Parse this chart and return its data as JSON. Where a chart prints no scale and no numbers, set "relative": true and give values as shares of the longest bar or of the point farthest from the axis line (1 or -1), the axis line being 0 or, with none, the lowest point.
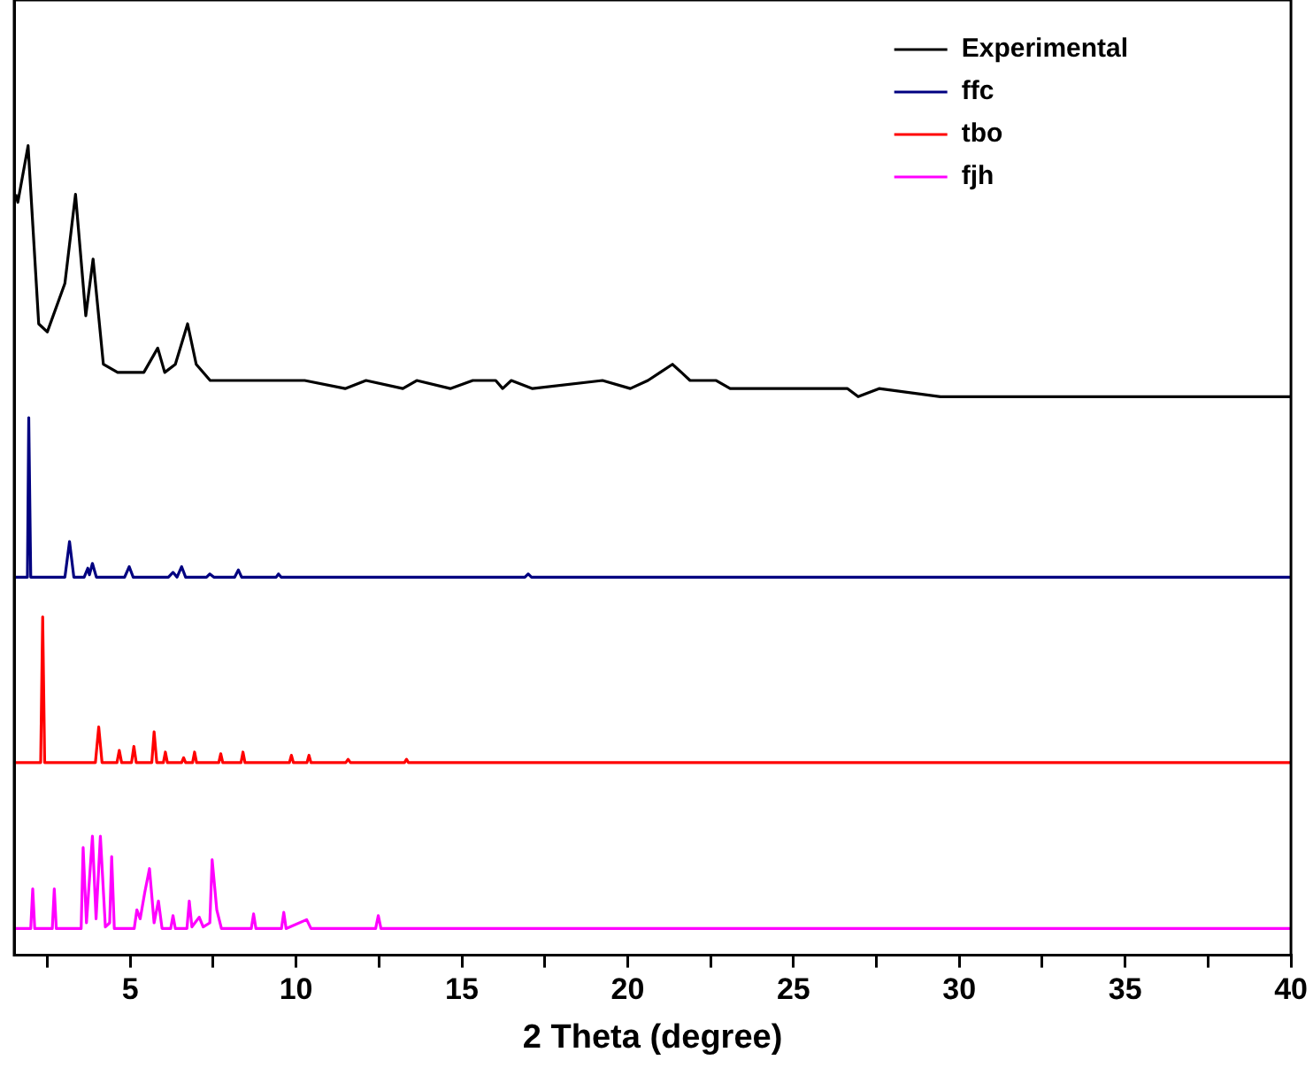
{
  "chart_data": {
    "type": "line",
    "relative": true,
    "xlabel": "2 Theta (degree)",
    "xlim": [
      1.5,
      40
    ],
    "xticks": [
      {
        "value": 2.5,
        "label": null
      },
      5,
      {
        "value": 7.5,
        "label": null
      },
      10,
      {
        "value": 12.5,
        "label": null
      },
      15,
      {
        "value": 17.5,
        "label": null
      },
      20,
      {
        "value": 22.5,
        "label": null
      },
      25,
      {
        "value": 27.5,
        "label": null
      },
      30,
      {
        "value": 32.5,
        "label": null
      },
      35,
      {
        "value": 37.5,
        "label": null
      },
      40
    ],
    "legend": "top right",
    "grid": false,
    "marker": "none",
    "line_style": "solid",
    "series": [
      {
        "name": "Experimental",
        "color": "#000000",
        "x": [
          1.55,
          1.61,
          1.92,
          2.24,
          2.5,
          3.03,
          3.35,
          3.66,
          3.88,
          4.19,
          4.62,
          5.09,
          5.41,
          5.83,
          6.04,
          6.36,
          6.73,
          6.99,
          7.41,
          8.68,
          9.0,
          10.26,
          11.48,
          12.11,
          13.22,
          13.64,
          14.65,
          15.33,
          16.02,
          16.23,
          16.49,
          17.13,
          19.24,
          20.08,
          20.61,
          20.98,
          21.35,
          21.62,
          21.88,
          22.67,
          23.09,
          23.89,
          24.31,
          25.89,
          26.63,
          26.95,
          27.58,
          29.43,
          32.97,
          36.45,
          40.0
        ],
        "values": [
          0.94,
          0.93,
          1.0,
          0.78,
          0.77,
          0.83,
          0.94,
          0.79,
          0.86,
          0.73,
          0.72,
          0.72,
          0.72,
          0.75,
          0.72,
          0.73,
          0.78,
          0.73,
          0.71,
          0.71,
          0.71,
          0.71,
          0.7,
          0.71,
          0.7,
          0.71,
          0.7,
          0.71,
          0.71,
          0.7,
          0.71,
          0.7,
          0.71,
          0.7,
          0.71,
          0.72,
          0.73,
          0.72,
          0.71,
          0.71,
          0.7,
          0.7,
          0.7,
          0.7,
          0.7,
          0.69,
          0.7,
          0.69,
          0.69,
          0.69,
          0.69
        ]
      },
      {
        "name": "ffc",
        "color": "#000080",
        "x": [
          1.55,
          1.9,
          1.94,
          2.0,
          3.03,
          3.17,
          3.3,
          3.61,
          3.72,
          3.77,
          3.86,
          3.98,
          4.83,
          4.97,
          5.09,
          6.15,
          6.29,
          6.41,
          6.55,
          6.67,
          7.3,
          7.4,
          7.52,
          8.15,
          8.26,
          8.36,
          9.4,
          9.47,
          9.55,
          16.9,
          17.0,
          17.1,
          40.0
        ],
        "values": [
          0.467,
          0.467,
          0.664,
          0.467,
          0.467,
          0.511,
          0.467,
          0.467,
          0.478,
          0.47,
          0.484,
          0.467,
          0.467,
          0.48,
          0.467,
          0.467,
          0.473,
          0.467,
          0.48,
          0.467,
          0.467,
          0.471,
          0.467,
          0.467,
          0.476,
          0.467,
          0.467,
          0.471,
          0.467,
          0.467,
          0.471,
          0.467,
          0.467
        ]
      },
      {
        "name": "tbo",
        "color": "#ff0000",
        "x": [
          1.55,
          2.3,
          2.36,
          2.42,
          3.95,
          4.05,
          4.15,
          4.6,
          4.67,
          4.74,
          5.04,
          5.11,
          5.18,
          5.65,
          5.72,
          5.8,
          6.0,
          6.06,
          6.12,
          6.55,
          6.61,
          6.67,
          6.88,
          6.94,
          7.0,
          7.67,
          7.73,
          7.79,
          8.34,
          8.4,
          8.46,
          9.8,
          9.86,
          9.92,
          10.33,
          10.39,
          10.45,
          11.5,
          11.57,
          11.64,
          13.27,
          13.33,
          13.39,
          40.0
        ],
        "values": [
          0.238,
          0.238,
          0.418,
          0.238,
          0.238,
          0.282,
          0.238,
          0.238,
          0.253,
          0.238,
          0.238,
          0.258,
          0.238,
          0.238,
          0.276,
          0.238,
          0.238,
          0.251,
          0.238,
          0.238,
          0.244,
          0.238,
          0.238,
          0.251,
          0.238,
          0.238,
          0.249,
          0.238,
          0.238,
          0.251,
          0.238,
          0.238,
          0.247,
          0.238,
          0.238,
          0.247,
          0.238,
          0.238,
          0.242,
          0.238,
          0.238,
          0.242,
          0.238,
          0.238
        ]
      },
      {
        "name": "fjh",
        "color": "#ff00ff",
        "x": [
          1.55,
          2.0,
          2.06,
          2.12,
          2.65,
          2.71,
          2.77,
          3.52,
          3.58,
          3.68,
          3.86,
          3.97,
          4.1,
          4.25,
          4.38,
          4.44,
          4.52,
          5.12,
          5.2,
          5.3,
          5.44,
          5.58,
          5.72,
          5.85,
          5.96,
          6.22,
          6.29,
          6.36,
          6.71,
          6.78,
          6.86,
          7.08,
          7.2,
          7.4,
          7.47,
          7.61,
          7.75,
          8.65,
          8.72,
          8.79,
          9.56,
          9.63,
          9.7,
          10.32,
          10.45,
          12.4,
          12.48,
          12.56,
          40.0
        ],
        "values": [
          0.033,
          0.033,
          0.082,
          0.033,
          0.033,
          0.082,
          0.033,
          0.033,
          0.133,
          0.04,
          0.147,
          0.045,
          0.147,
          0.035,
          0.04,
          0.122,
          0.033,
          0.033,
          0.056,
          0.045,
          0.078,
          0.107,
          0.04,
          0.067,
          0.033,
          0.033,
          0.049,
          0.033,
          0.033,
          0.067,
          0.035,
          0.047,
          0.035,
          0.04,
          0.118,
          0.056,
          0.033,
          0.033,
          0.051,
          0.033,
          0.033,
          0.053,
          0.033,
          0.044,
          0.033,
          0.033,
          0.049,
          0.033,
          0.033
        ]
      }
    ]
  }
}
